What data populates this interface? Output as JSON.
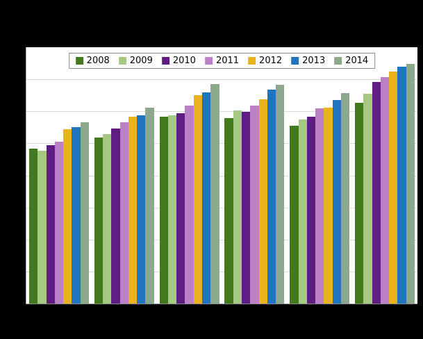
{
  "figure": {
    "background_color": "#000000",
    "plot_background_color": "#ffffff",
    "gridline_color": "#d9d9d9",
    "axis_line_color": "#8a8a8a"
  },
  "chart_data": {
    "type": "bar",
    "title": "",
    "xlabel": "",
    "ylabel": "",
    "categories": [
      "",
      "",
      "",
      "",
      "",
      ""
    ],
    "series": [
      {
        "name": "2008",
        "color": "#43791d",
        "values": [
          60.5,
          64.9,
          73.0,
          72.4,
          69.5,
          78.4
        ]
      },
      {
        "name": "2009",
        "color": "#a5c882",
        "values": [
          59.5,
          66.2,
          73.5,
          75.4,
          71.9,
          81.9
        ]
      },
      {
        "name": "2010",
        "color": "#5f1d83",
        "values": [
          61.9,
          68.4,
          74.3,
          74.9,
          73.0,
          86.5
        ]
      },
      {
        "name": "2011",
        "color": "#bc80c6",
        "values": [
          63.2,
          70.8,
          77.3,
          77.3,
          76.2,
          88.4
        ]
      },
      {
        "name": "2012",
        "color": "#eab31e",
        "values": [
          68.1,
          73.0,
          81.4,
          79.7,
          76.5,
          90.5
        ]
      },
      {
        "name": "2013",
        "color": "#2073bf",
        "values": [
          68.9,
          73.5,
          82.4,
          83.5,
          79.5,
          92.4
        ]
      },
      {
        "name": "2014",
        "color": "#8ca98d",
        "values": [
          70.8,
          76.5,
          85.7,
          85.4,
          82.0,
          93.5
        ]
      }
    ],
    "ylim": [
      0,
      100
    ],
    "value_scale_note": "values are percent of plot height; axis tick labels not visible in image",
    "grid": true,
    "gridline_intervals": 8,
    "legend_position": "top-center",
    "legend_labels": [
      "2008",
      "2009",
      "2010",
      "2011",
      "2012",
      "2013",
      "2014"
    ],
    "x_tick_labels_visible": false,
    "y_tick_labels_visible": false
  }
}
